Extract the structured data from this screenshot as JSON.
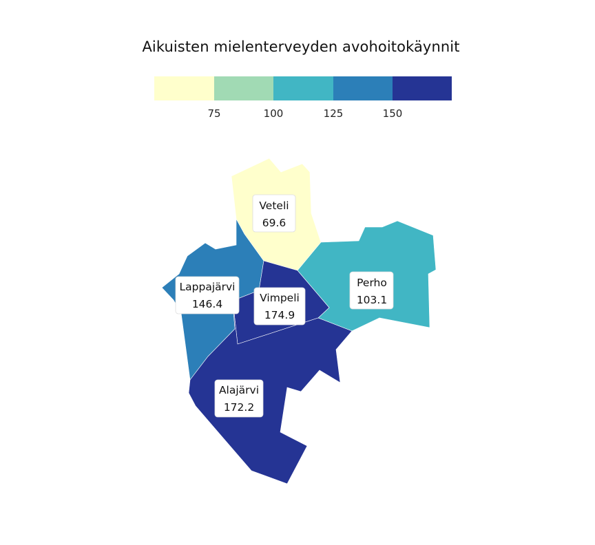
{
  "title": "Aikuisten mielenterveyden avohoitokäynnit",
  "legend": {
    "colors": [
      "#ffffcc",
      "#a1dab4",
      "#41b6c4",
      "#2c7fb8",
      "#253494"
    ],
    "ticks": [
      "75",
      "100",
      "125",
      "150"
    ]
  },
  "regions": [
    {
      "name": "Veteli",
      "value": "69.6",
      "color": "#ffffcc"
    },
    {
      "name": "Perho",
      "value": "103.1",
      "color": "#41b6c4"
    },
    {
      "name": "Lappajärvi",
      "value": "146.4",
      "color": "#2c7fb8"
    },
    {
      "name": "Vimpeli",
      "value": "174.9",
      "color": "#253494"
    },
    {
      "name": "Alajärvi",
      "value": "172.2",
      "color": "#253494"
    }
  ]
}
